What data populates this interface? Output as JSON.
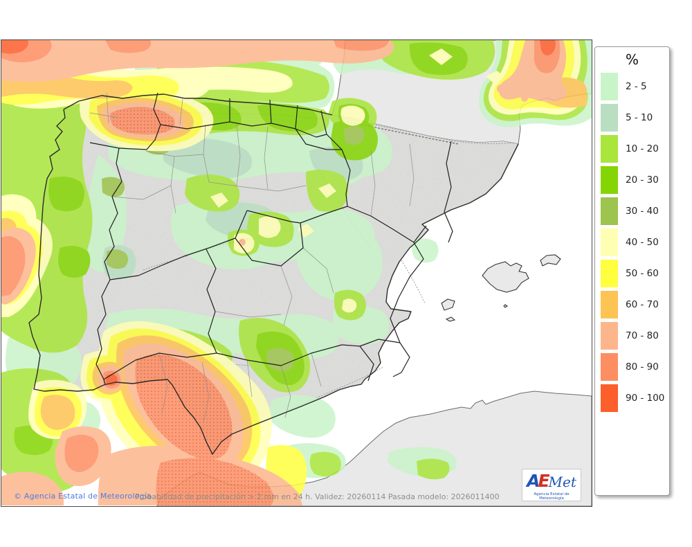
{
  "legend": {
    "title": "%",
    "units": [
      {
        "range": "2 - 5",
        "color": "#c9f4c9"
      },
      {
        "range": "5 - 10",
        "color": "#b9dec2"
      },
      {
        "range": "10 - 20",
        "color": "#a9e53a"
      },
      {
        "range": "20 - 30",
        "color": "#85d504"
      },
      {
        "range": "30 - 40",
        "color": "#9dc44c"
      },
      {
        "range": "40 - 50",
        "color": "#ffffb4"
      },
      {
        "range": "50 - 60",
        "color": "#ffff40"
      },
      {
        "range": "60 - 70",
        "color": "#fdc353"
      },
      {
        "range": "70 - 80",
        "color": "#fdb68c"
      },
      {
        "range": "80 - 90",
        "color": "#fd8e62"
      },
      {
        "range": "90 - 100",
        "color": "#fc5e2c"
      }
    ]
  },
  "footer": {
    "copyright": "© Agencia Estatal de Meteorología",
    "caption": "Probabilidad de precipitación > 2 mm en 24 h. Validez: 20260114 Pasada modelo: 2026011400"
  },
  "logo": {
    "a": "A",
    "e": "E",
    "met": "Met",
    "tagline": "Agencia Estatal de Meteorología"
  },
  "map": {
    "colors": {
      "sea": "#ffffff",
      "foreign_land": "#e9e9e9",
      "spain_land": "#dcdcda",
      "border_dark": "#1f1f1f",
      "border_light": "#909090"
    }
  }
}
